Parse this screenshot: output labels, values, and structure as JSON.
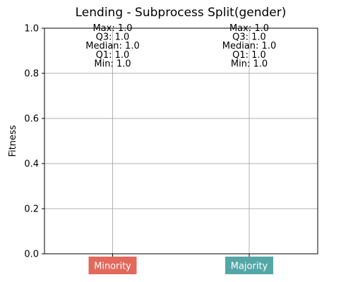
{
  "chart_data": {
    "type": "box",
    "title": "Lending - Subprocess Split(gender)",
    "ylabel": "Fitness",
    "xlabel": "",
    "ylim": [
      0.0,
      1.0
    ],
    "yticks": [
      {
        "value": 0.0,
        "label": "0.0"
      },
      {
        "value": 0.2,
        "label": "0.2"
      },
      {
        "value": 0.4,
        "label": "0.4"
      },
      {
        "value": 0.6,
        "label": "0.6"
      },
      {
        "value": 0.8,
        "label": "0.8"
      },
      {
        "value": 1.0,
        "label": "1.0"
      }
    ],
    "grid": true,
    "categories": [
      {
        "label": "Minority",
        "color": "#e2695c",
        "stats": {
          "max": 1.0,
          "q3": 1.0,
          "median": 1.0,
          "q1": 1.0,
          "min": 1.0
        },
        "annotations": [
          "Max: 1.0",
          "Q3: 1.0",
          "Median: 1.0",
          "Q1: 1.0",
          "Min: 1.0"
        ]
      },
      {
        "label": "Majority",
        "color": "#55a6a6",
        "stats": {
          "max": 1.0,
          "q3": 1.0,
          "median": 1.0,
          "q1": 1.0,
          "min": 1.0
        },
        "annotations": [
          "Max: 1.0",
          "Q3: 1.0",
          "Median: 1.0",
          "Q1: 1.0",
          "Min: 1.0"
        ]
      }
    ]
  }
}
